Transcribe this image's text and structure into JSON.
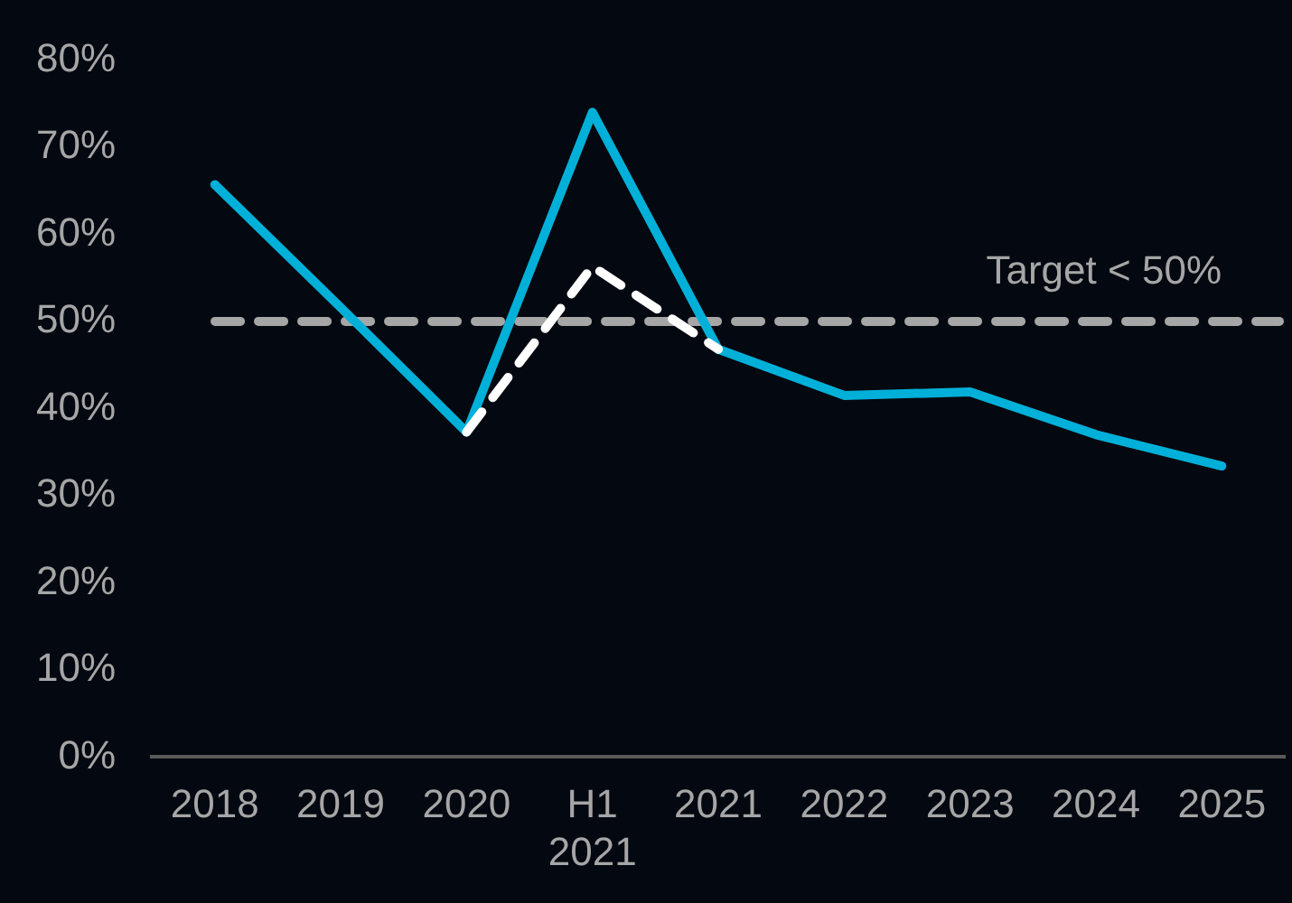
{
  "chart_data": {
    "type": "line",
    "categories": [
      "2018",
      "2019",
      "2020",
      "H1 2021",
      "2021",
      "2022",
      "2023",
      "2024",
      "2025"
    ],
    "series": [
      {
        "color": "#ffffff",
        "line_style": "dashed",
        "values": [
          null,
          null,
          37.3,
          56.3,
          46.8,
          null,
          null,
          null,
          null
        ]
      },
      {
        "color": "#00b0d8",
        "line_style": "solid",
        "values": [
          65.7,
          51.6,
          37.3,
          74,
          46.8,
          41.5,
          41.9,
          37,
          33.4
        ]
      }
    ],
    "ylim": [
      0,
      80
    ],
    "yticks": [
      {
        "value": 0,
        "label": "0%"
      },
      {
        "value": 10,
        "label": "10%"
      },
      {
        "value": 20,
        "label": "20%"
      },
      {
        "value": 30,
        "label": "30%"
      },
      {
        "value": 40,
        "label": "40%"
      },
      {
        "value": 50,
        "label": "50%"
      },
      {
        "value": 60,
        "label": "60%"
      },
      {
        "value": 70,
        "label": "70%"
      },
      {
        "value": 80,
        "label": "80%"
      }
    ],
    "ref_lines": [
      {
        "axis": "y",
        "value": 50,
        "label": "Target < 50%",
        "color": "#a6a6a6",
        "line_style": "dashed"
      }
    ],
    "grid": false,
    "legend": false,
    "marker": "none"
  }
}
